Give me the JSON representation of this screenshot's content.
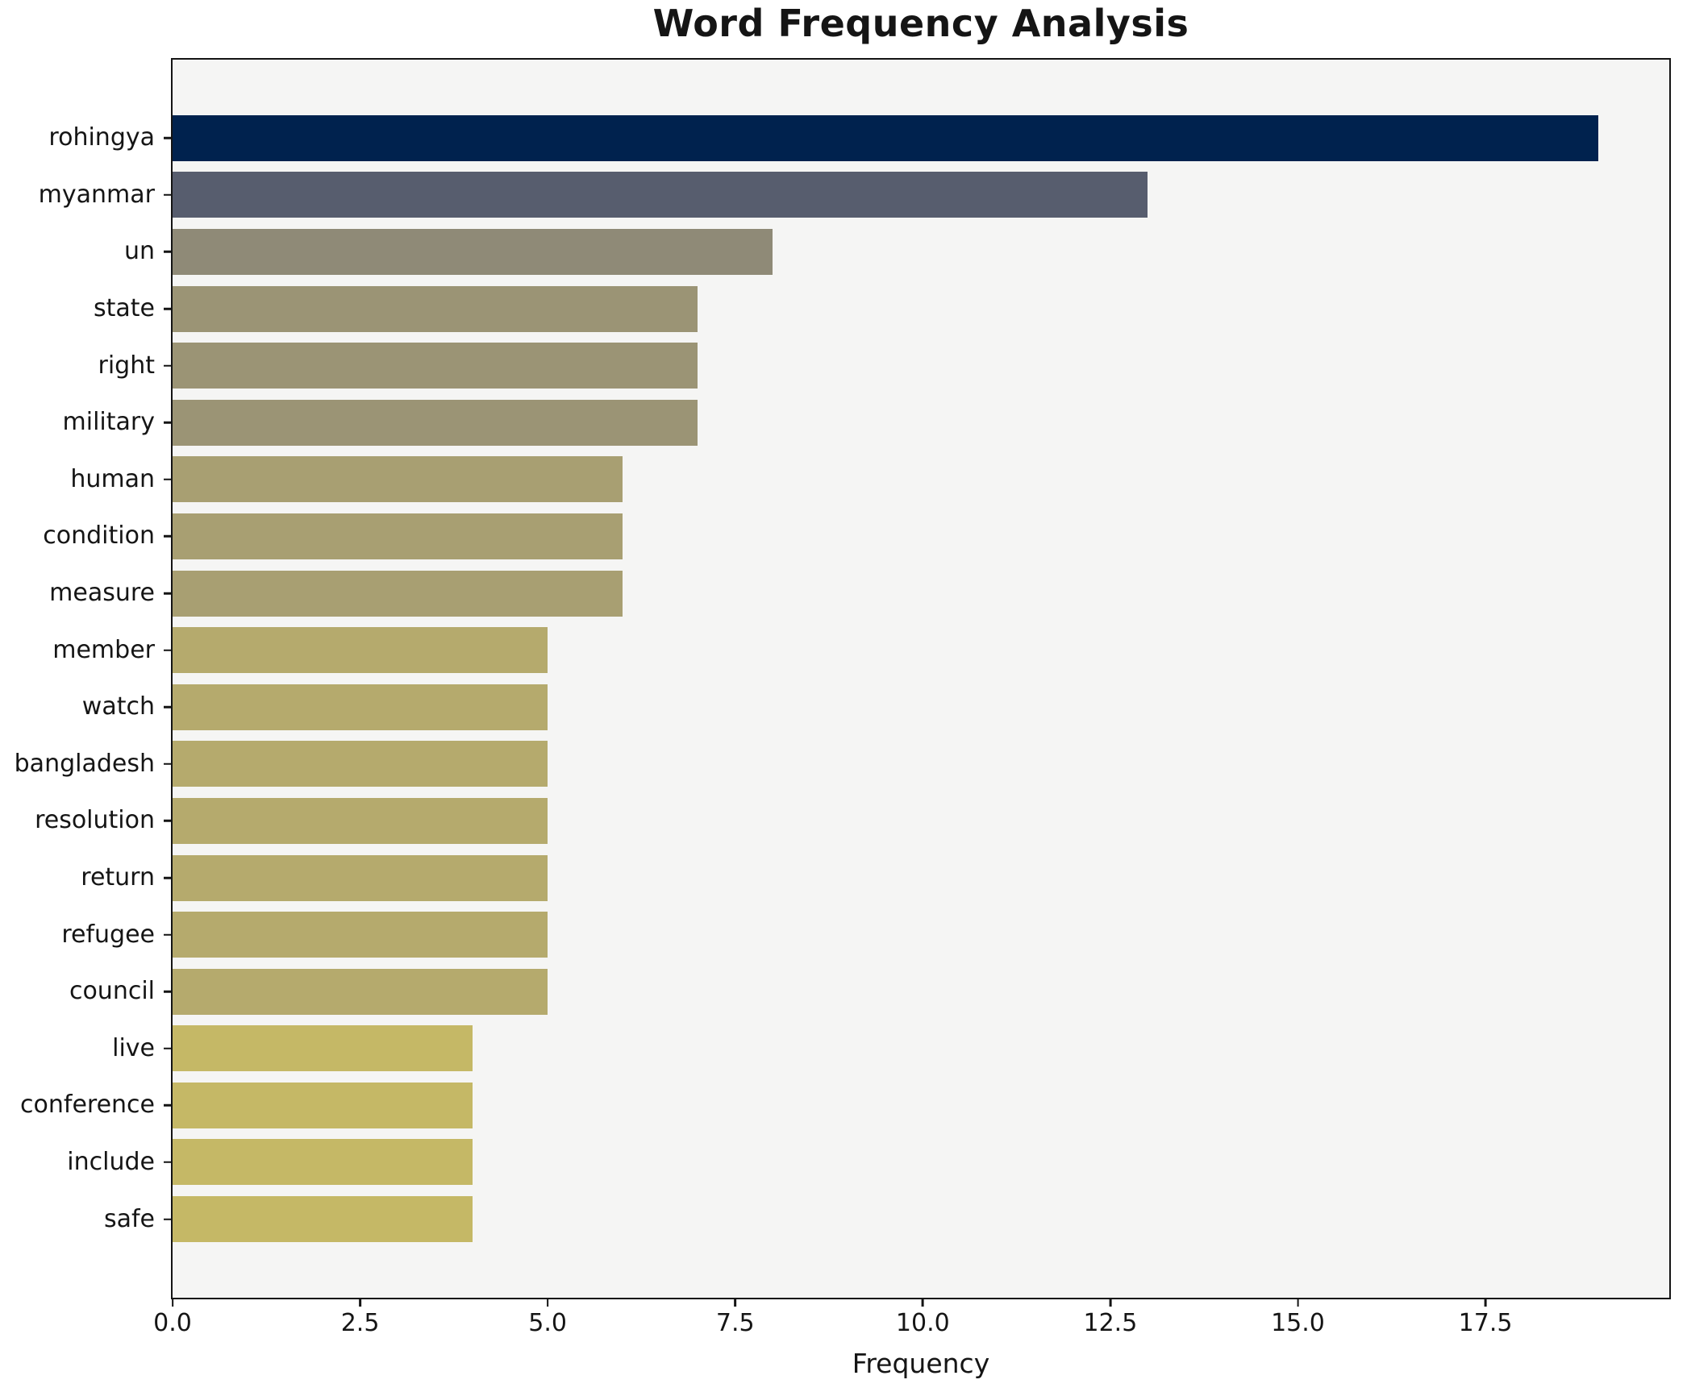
{
  "chart_data": {
    "type": "bar",
    "orientation": "horizontal",
    "title": "Word Frequency Analysis",
    "xlabel": "Frequency",
    "ylabel": "",
    "categories": [
      "rohingya",
      "myanmar",
      "un",
      "state",
      "right",
      "military",
      "human",
      "condition",
      "measure",
      "member",
      "watch",
      "bangladesh",
      "resolution",
      "return",
      "refugee",
      "council",
      "live",
      "conference",
      "include",
      "safe"
    ],
    "values": [
      19,
      13,
      8,
      7,
      7,
      7,
      6,
      6,
      6,
      5,
      5,
      5,
      5,
      5,
      5,
      5,
      4,
      4,
      4,
      4
    ],
    "bar_colors": [
      "#00224e",
      "#575d6e",
      "#8f8a77",
      "#9b9475",
      "#9b9475",
      "#9b9475",
      "#a89f72",
      "#a89f72",
      "#a89f72",
      "#b5aa6d",
      "#b5aa6d",
      "#b5aa6d",
      "#b5aa6d",
      "#b5aa6d",
      "#b5aa6d",
      "#b5aa6d",
      "#c5b866",
      "#c5b866",
      "#c5b866",
      "#c5b866"
    ],
    "xlim": [
      0,
      19.95
    ],
    "xticks": [
      0,
      2.5,
      5,
      7.5,
      10,
      12.5,
      15,
      17.5
    ],
    "xtick_labels": [
      "0.0",
      "2.5",
      "5.0",
      "7.5",
      "10.0",
      "12.5",
      "15.0",
      "17.5"
    ],
    "grid": false,
    "legend": null,
    "plot_background": "#f5f5f4",
    "figure_background": "#ffffff",
    "axis_color": "#141414",
    "text_color": "#151515"
  }
}
